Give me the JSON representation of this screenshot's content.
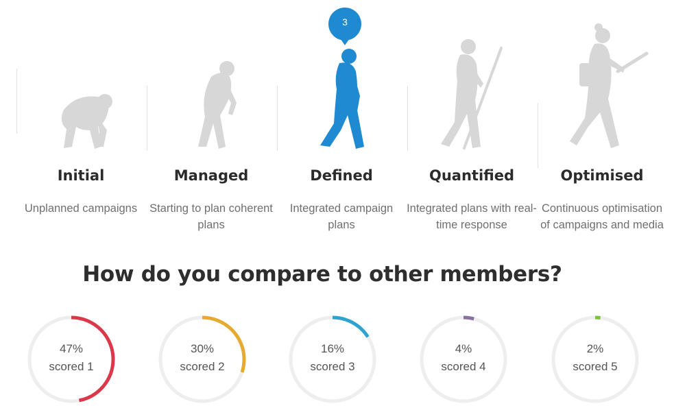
{
  "stages": [
    {
      "title": "Initial",
      "description": "Unplanned campaigns"
    },
    {
      "title": "Managed",
      "description": "Starting to plan coherent plans"
    },
    {
      "title": "Defined",
      "description": "Integrated campaign plans"
    },
    {
      "title": "Quantified",
      "description": "Integrated plans with real-time response"
    },
    {
      "title": "Optimised",
      "description": "Continuous optimisation of campaigns and media"
    }
  ],
  "current_stage": {
    "number": "3",
    "index": 2
  },
  "comparison": {
    "heading": "How do you compare to other members?",
    "scores": [
      {
        "percent": "47%",
        "label": "scored 1",
        "value": 0.47,
        "color": "#d9394b"
      },
      {
        "percent": "30%",
        "label": "scored 2",
        "value": 0.3,
        "color": "#e6ab2e"
      },
      {
        "percent": "16%",
        "label": "scored 3",
        "value": 0.16,
        "color": "#2ea3cf"
      },
      {
        "percent": "4%",
        "label": "scored 4",
        "value": 0.04,
        "color": "#8a6fa3"
      },
      {
        "percent": "2%",
        "label": "scored 5",
        "value": 0.02,
        "color": "#7cc242"
      }
    ]
  },
  "colors": {
    "active": "#1f8ad1",
    "inactive": "#d7d7d7",
    "track": "#eeeeee"
  }
}
